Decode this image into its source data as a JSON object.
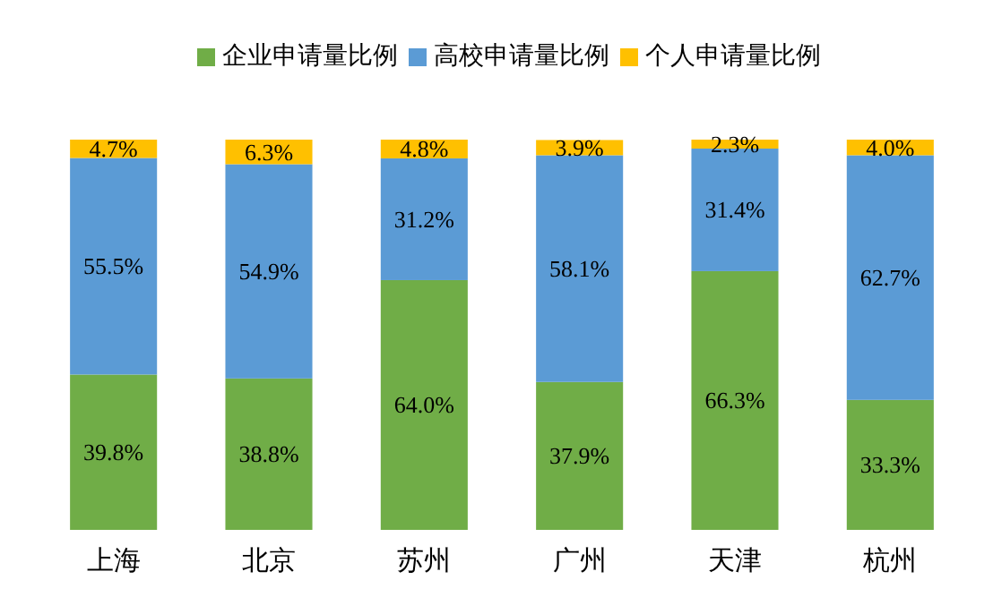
{
  "chart_data": {
    "type": "bar",
    "stacked": true,
    "categories": [
      "上海",
      "北京",
      "苏州",
      "广州",
      "天津",
      "杭州"
    ],
    "ylim": [
      0,
      100
    ],
    "tick_labels": "x",
    "legend": "top",
    "grid": false,
    "series": [
      {
        "name": "企业申请量比例",
        "color": "#70ad47",
        "values": [
          39.8,
          38.8,
          64.0,
          37.9,
          66.3,
          33.3
        ],
        "value_labels": [
          "39.8%",
          "38.8%",
          "64.0%",
          "37.9%",
          "66.3%",
          "33.3%"
        ]
      },
      {
        "name": "高校申请量比例",
        "color": "#5b9bd5",
        "values": [
          55.5,
          54.9,
          31.2,
          58.1,
          31.4,
          62.7
        ],
        "value_labels": [
          "55.5%",
          "54.9%",
          "31.2%",
          "58.1%",
          "31.4%",
          "62.7%"
        ]
      },
      {
        "name": "个人申请量比例",
        "color": "#ffc000",
        "values": [
          4.7,
          6.3,
          4.8,
          3.9,
          2.3,
          4.0
        ],
        "value_labels": [
          "4.7%",
          "6.3%",
          "4.8%",
          "3.9%",
          "2.3%",
          "4.0%"
        ]
      }
    ]
  }
}
